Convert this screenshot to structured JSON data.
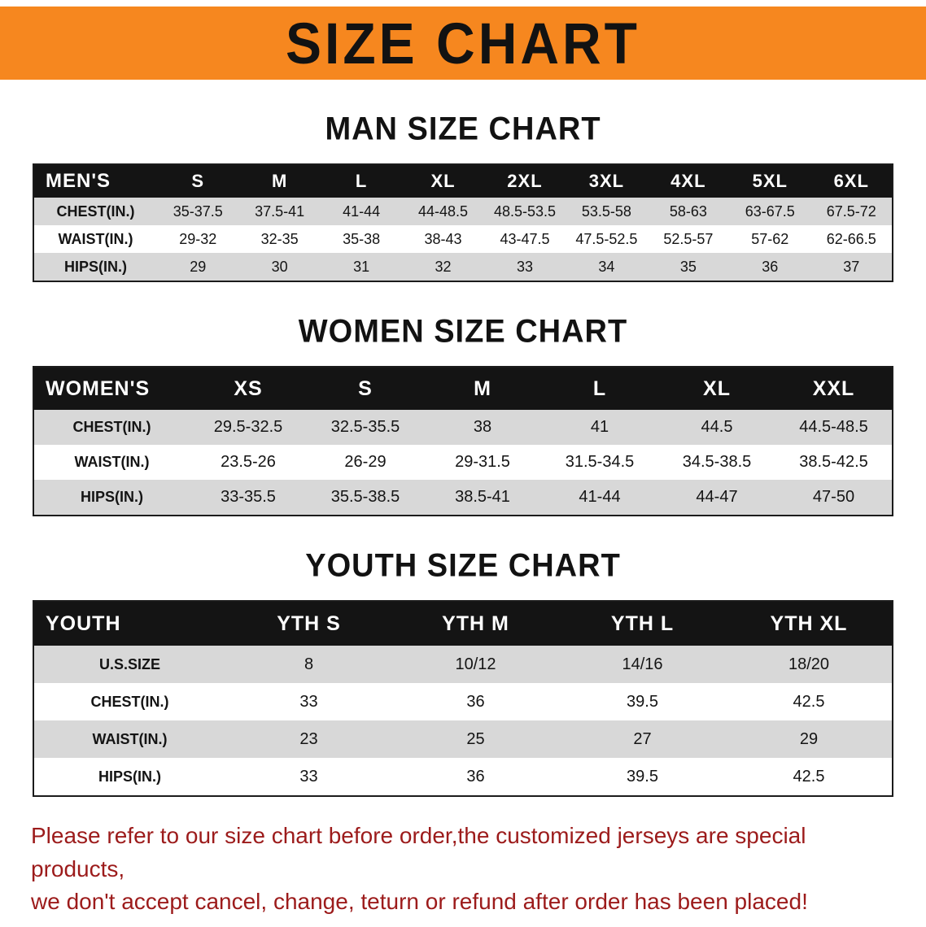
{
  "banner": {
    "title": "SIZE CHART",
    "bg_color": "#f6871f",
    "text_color": "#121212"
  },
  "sections": [
    {
      "title": "MAN SIZE CHART",
      "table": {
        "header": [
          "MEN'S",
          "S",
          "M",
          "L",
          "XL",
          "2XL",
          "3XL",
          "4XL",
          "5XL",
          "6XL"
        ],
        "rows": [
          {
            "label": "CHEST(IN.)",
            "values": [
              "35-37.5",
              "37.5-41",
              "41-44",
              "44-48.5",
              "48.5-53.5",
              "53.5-58",
              "58-63",
              "63-67.5",
              "67.5-72"
            ]
          },
          {
            "label": "WAIST(IN.)",
            "values": [
              "29-32",
              "32-35",
              "35-38",
              "38-43",
              "43-47.5",
              "47.5-52.5",
              "52.5-57",
              "57-62",
              "62-66.5"
            ]
          },
          {
            "label": "HIPS(IN.)",
            "values": [
              "29",
              "30",
              "31",
              "32",
              "33",
              "34",
              "35",
              "36",
              "37"
            ]
          }
        ]
      }
    },
    {
      "title": "WOMEN SIZE CHART",
      "table": {
        "header": [
          "WOMEN'S",
          "XS",
          "S",
          "M",
          "L",
          "XL",
          "XXL"
        ],
        "rows": [
          {
            "label": "CHEST(IN.)",
            "values": [
              "29.5-32.5",
              "32.5-35.5",
              "38",
              "41",
              "44.5",
              "44.5-48.5"
            ]
          },
          {
            "label": "WAIST(IN.)",
            "values": [
              "23.5-26",
              "26-29",
              "29-31.5",
              "31.5-34.5",
              "34.5-38.5",
              "38.5-42.5"
            ]
          },
          {
            "label": "HIPS(IN.)",
            "values": [
              "33-35.5",
              "35.5-38.5",
              "38.5-41",
              "41-44",
              "44-47",
              "47-50"
            ]
          }
        ]
      }
    },
    {
      "title": "YOUTH SIZE CHART",
      "table": {
        "header": [
          "YOUTH",
          "YTH S",
          "YTH M",
          "YTH L",
          "YTH XL"
        ],
        "rows": [
          {
            "label": "U.S.SIZE",
            "values": [
              "8",
              "10/12",
              "14/16",
              "18/20"
            ]
          },
          {
            "label": "CHEST(IN.)",
            "values": [
              "33",
              "36",
              "39.5",
              "42.5"
            ]
          },
          {
            "label": "WAIST(IN.)",
            "values": [
              "23",
              "25",
              "27",
              "29"
            ]
          },
          {
            "label": "HIPS(IN.)",
            "values": [
              "33",
              "36",
              "39.5",
              "42.5"
            ]
          }
        ]
      }
    }
  ],
  "footer": {
    "line1": "Please refer to our size chart before order,the customized jerseys are special products,",
    "line2": "we don't accept cancel, change, teturn or refund after order has been placed!",
    "text_color": "#9c1b1b"
  }
}
